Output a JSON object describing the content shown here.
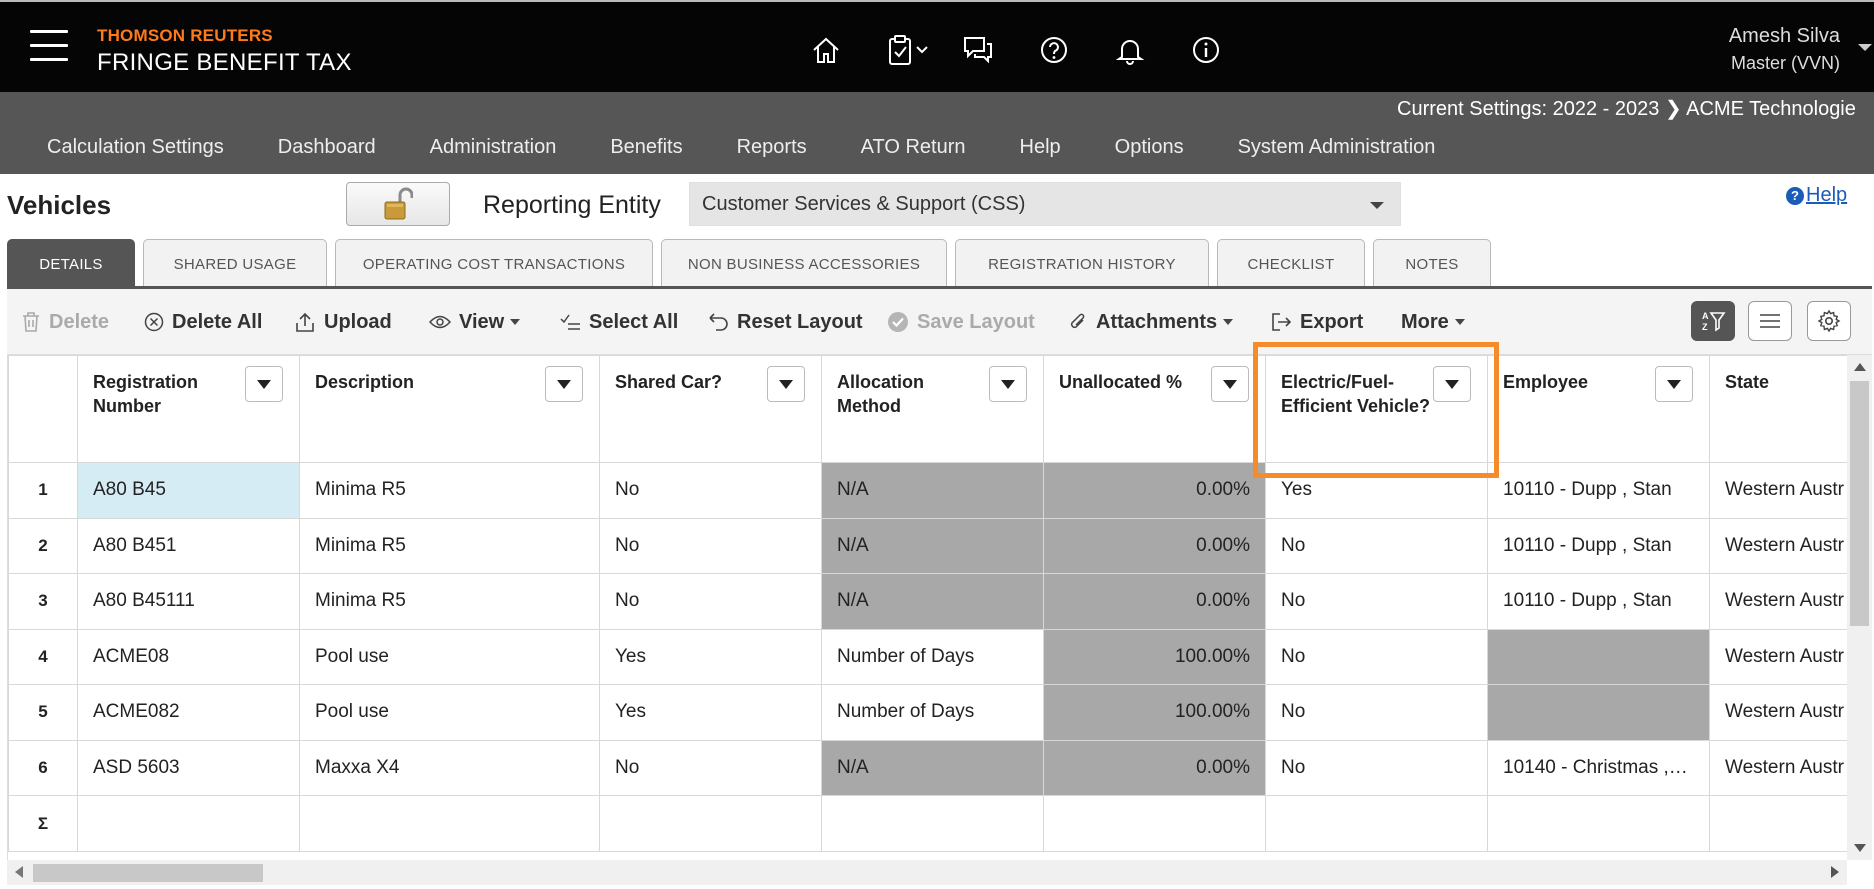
{
  "header": {
    "brand_top": "THOMSON REUTERS",
    "brand_main": "FRINGE BENEFIT TAX",
    "user_name": "Amesh Silva",
    "user_role": "Master (VVN)",
    "icons": [
      "home-icon",
      "clipboard-check-icon",
      "chat-icon",
      "help-circle-icon",
      "bell-icon",
      "info-icon"
    ]
  },
  "nav": {
    "current_settings": "Current Settings: 2022 - 2023 ❯ ACME Technologie",
    "items": [
      "Calculation Settings",
      "Dashboard",
      "Administration",
      "Benefits",
      "Reports",
      "ATO Return",
      "Help",
      "Options",
      "System Administration"
    ]
  },
  "page": {
    "title": "Vehicles",
    "entity_label": "Reporting Entity",
    "entity_value": "Customer Services & Support (CSS)",
    "help": "Help"
  },
  "tabs": [
    "DETAILS",
    "SHARED USAGE",
    "OPERATING COST TRANSACTIONS",
    "NON BUSINESS ACCESSORIES",
    "REGISTRATION HISTORY",
    "CHECKLIST",
    "NOTES"
  ],
  "toolbar": {
    "delete": "Delete",
    "delete_all": "Delete All",
    "upload": "Upload",
    "view": "View",
    "select_all": "Select All",
    "reset_layout": "Reset Layout",
    "save_layout": "Save Layout",
    "attachments": "Attachments",
    "export": "Export",
    "more": "More"
  },
  "grid": {
    "columns": [
      "Registration Number",
      "Description",
      "Shared Car?",
      "Allocation Method",
      "Unallocated %",
      "Electric/Fuel-Efficient Vehicle?",
      "Employee",
      "State"
    ],
    "rows": [
      {
        "n": "1",
        "reg": "A80 B45",
        "desc": "Minima R5",
        "shared": "No",
        "alloc": "N/A",
        "unalloc": "0.00%",
        "ev": "Yes",
        "emp": "10110 - Dupp , Stan",
        "state": "Western Austr"
      },
      {
        "n": "2",
        "reg": "A80 B451",
        "desc": "Minima R5",
        "shared": "No",
        "alloc": "N/A",
        "unalloc": "0.00%",
        "ev": "No",
        "emp": "10110 - Dupp , Stan",
        "state": "Western Austr"
      },
      {
        "n": "3",
        "reg": "A80 B45111",
        "desc": "Minima R5",
        "shared": "No",
        "alloc": "N/A",
        "unalloc": "0.00%",
        "ev": "No",
        "emp": "10110 - Dupp , Stan",
        "state": "Western Austr"
      },
      {
        "n": "4",
        "reg": "ACME08",
        "desc": "Pool use",
        "shared": "Yes",
        "alloc": "Number of Days",
        "unalloc": "100.00%",
        "ev": "No",
        "emp": "",
        "state": "Western Austr"
      },
      {
        "n": "5",
        "reg": "ACME082",
        "desc": "Pool use",
        "shared": "Yes",
        "alloc": "Number of Days",
        "unalloc": "100.00%",
        "ev": "No",
        "emp": "",
        "state": "Western Austr"
      },
      {
        "n": "6",
        "reg": "ASD 5603",
        "desc": "Maxxa X4",
        "shared": "No",
        "alloc": "N/A",
        "unalloc": "0.00%",
        "ev": "No",
        "emp": "10140 - Christmas ,…",
        "state": "Western Austr"
      }
    ],
    "summary_symbol": "Σ"
  }
}
